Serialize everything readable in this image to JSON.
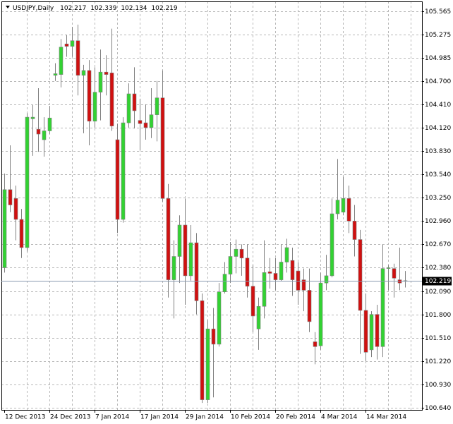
{
  "chart_data": {
    "type": "candlestick",
    "symbol": "USDJPY,Daily",
    "up_color": "#32d232",
    "down_color": "#d01010",
    "categories": [
      "12 Dec 2013",
      null,
      null,
      null,
      null,
      null,
      null,
      null,
      "24 Dec 2013",
      null,
      null,
      null,
      null,
      null,
      null,
      null,
      "7 Jan 2014",
      null,
      null,
      null,
      null,
      null,
      null,
      null,
      "17 Jan 2014",
      null,
      null,
      null,
      null,
      null,
      null,
      null,
      "29 Jan 2014",
      null,
      null,
      null,
      null,
      null,
      null,
      null,
      "10 Feb 2014",
      null,
      null,
      null,
      null,
      null,
      null,
      null,
      "20 Feb 2014",
      null,
      null,
      null,
      null,
      null,
      null,
      null,
      "4 Mar 2014",
      null,
      null,
      null,
      null,
      null,
      null,
      null,
      "14 Mar 2014",
      null,
      null,
      null,
      null,
      null,
      null,
      null
    ],
    "open": [
      102.38,
      103.35,
      103.24,
      102.98,
      102.63,
      104.23,
      104.1,
      103.97,
      104.08,
      104.77,
      104.78,
      105.16,
      105.13,
      105.2,
      104.77,
      104.83,
      104.2,
      104.56,
      104.81,
      104.8,
      103.97,
      102.98,
      104.18,
      104.54,
      104.21,
      104.18,
      104.12,
      104.28,
      104.49,
      103.24,
      102.23,
      102.52,
      102.91,
      102.28,
      102.69,
      101.97,
      100.74,
      101.62,
      101.43,
      102.08,
      102.3,
      102.52,
      102.61,
      102.5,
      102.15,
      101.62,
      101.9,
      102.33,
      102.31,
      102.23,
      102.45,
      102.47,
      102.34,
      102.23,
      102.1,
      101.46,
      101.41,
      102.19,
      102.28,
      103.05,
      103.07,
      103.24,
      102.96,
      102.73,
      101.85,
      101.36,
      101.8,
      101.4,
      102.37,
      102.37,
      102.23,
      102.217
    ],
    "high": [
      103.55,
      103.9,
      103.4,
      103.11,
      104.3,
      104.4,
      104.61,
      104.25,
      104.39,
      104.92,
      105.22,
      105.27,
      105.37,
      105.4,
      104.9,
      104.96,
      104.87,
      105.09,
      105.02,
      105.35,
      104.17,
      104.25,
      104.67,
      104.87,
      104.48,
      104.41,
      104.61,
      104.7,
      104.83,
      103.42,
      102.72,
      103.03,
      103.24,
      102.91,
      102.81,
      102.06,
      101.73,
      101.88,
      102.19,
      102.45,
      102.7,
      102.73,
      102.67,
      102.67,
      102.41,
      102.01,
      102.72,
      102.5,
      102.5,
      102.67,
      102.74,
      102.63,
      102.45,
      102.37,
      102.37,
      101.58,
      102.32,
      102.54,
      103.24,
      103.73,
      103.51,
      103.4,
      103.16,
      102.85,
      102.06,
      101.84,
      101.92,
      102.67,
      102.41,
      102.43,
      102.63,
      102.339
    ],
    "low": [
      102.32,
      103.07,
      102.72,
      102.5,
      102.58,
      103.77,
      103.82,
      103.76,
      104.04,
      104.7,
      104.62,
      105.0,
      105.0,
      104.52,
      104.05,
      103.9,
      104.12,
      104.21,
      104.52,
      104.08,
      102.81,
      102.94,
      104.12,
      104.11,
      103.84,
      103.97,
      103.99,
      103.95,
      103.2,
      102.01,
      101.75,
      102.19,
      101.92,
      102.22,
      101.8,
      100.7,
      100.7,
      100.77,
      101.4,
      102.06,
      102.19,
      102.31,
      102.28,
      102.01,
      101.58,
      101.36,
      101.75,
      102.12,
      102.1,
      102.21,
      102.32,
      102.03,
      101.92,
      101.84,
      101.58,
      101.18,
      101.36,
      102.1,
      102.26,
      102.98,
      103.03,
      102.81,
      102.52,
      101.31,
      101.22,
      101.27,
      101.24,
      101.27,
      102.1,
      102.01,
      102.1,
      102.134
    ],
    "close": [
      103.35,
      103.16,
      102.98,
      102.63,
      104.25,
      104.25,
      104.04,
      104.08,
      104.24,
      104.79,
      105.12,
      105.13,
      105.2,
      104.77,
      104.83,
      104.2,
      104.56,
      104.81,
      104.78,
      104.14,
      102.98,
      104.18,
      104.54,
      104.33,
      104.17,
      104.12,
      104.28,
      104.49,
      103.24,
      102.23,
      102.52,
      102.91,
      102.28,
      102.69,
      101.97,
      100.74,
      101.62,
      101.43,
      102.08,
      102.3,
      102.52,
      102.61,
      102.5,
      102.15,
      101.78,
      101.9,
      102.32,
      102.31,
      102.23,
      102.45,
      102.63,
      102.23,
      102.1,
      102.1,
      101.71,
      101.4,
      102.19,
      102.28,
      103.05,
      103.22,
      103.24,
      102.96,
      102.73,
      101.85,
      101.33,
      101.8,
      101.4,
      102.37,
      102.38,
      102.25,
      102.19,
      102.219
    ],
    "ylim": [
      100.614,
      105.688
    ],
    "yticks": [
      105.565,
      105.275,
      104.985,
      {
        "value": 104.7,
        "label": "104.700"
      },
      {
        "value": 104.41,
        "label": "104.410"
      },
      {
        "value": 104.12,
        "label": "104.120"
      },
      {
        "value": 103.83,
        "label": "103.830"
      },
      {
        "value": 103.54,
        "label": "103.540"
      },
      {
        "value": 103.25,
        "label": "103.250"
      },
      {
        "value": 102.96,
        "label": "102.960"
      },
      {
        "value": 102.67,
        "label": "102.670"
      },
      {
        "value": 102.38,
        "label": "102.380"
      },
      {
        "value": 102.09,
        "label": "102.090"
      },
      {
        "value": 101.8,
        "label": "101.800"
      },
      {
        "value": 101.51,
        "label": "101.510"
      },
      {
        "value": 101.22,
        "label": "101.220"
      },
      {
        "value": 100.93,
        "label": "100.930"
      },
      {
        "value": 100.64,
        "label": "100.640"
      }
    ],
    "grid": true
  }
}
